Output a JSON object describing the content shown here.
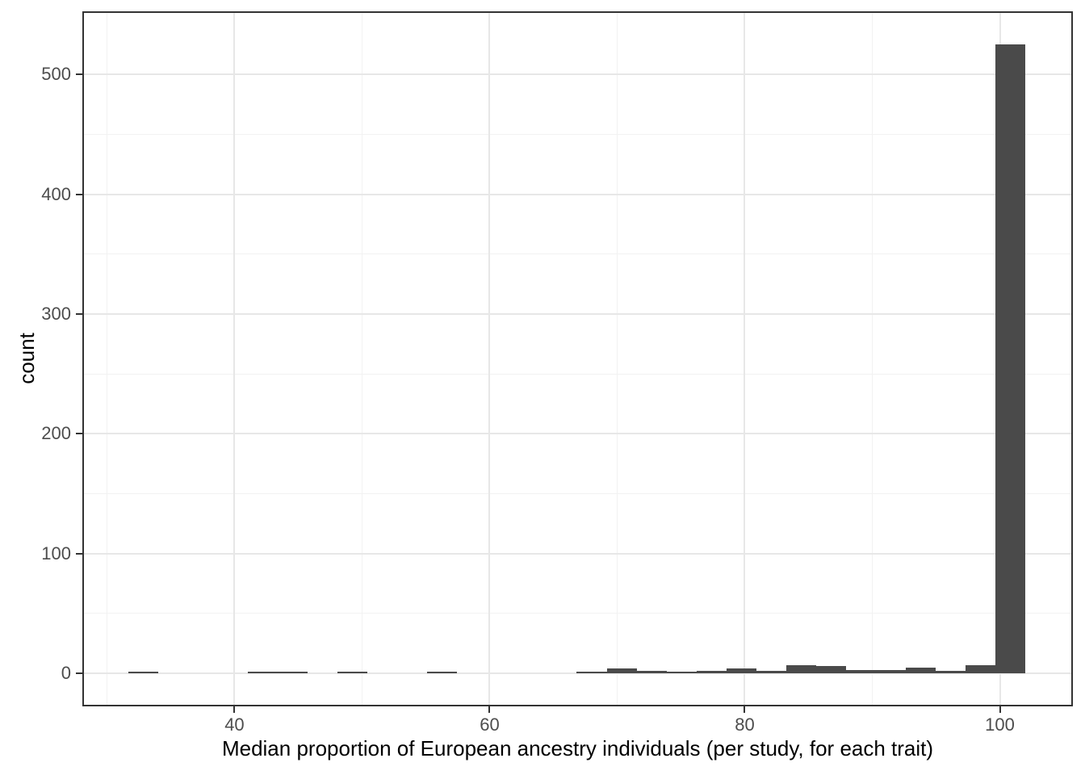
{
  "chart_data": {
    "type": "histogram",
    "title": "",
    "xlabel": "Median proportion of European ancestry individuals (per study, for each trait)",
    "ylabel": "count",
    "x_ticks": [
      40,
      60,
      80,
      100
    ],
    "y_ticks": [
      0,
      100,
      200,
      300,
      400,
      500
    ],
    "x_minor_gridlines": [
      30,
      50,
      70,
      90
    ],
    "y_minor_gridlines": [
      50,
      150,
      250,
      350,
      450
    ],
    "x_domain": [
      28.2,
      105.6
    ],
    "y_domain": [
      -26.3,
      551.5
    ],
    "bin_start": 31.66,
    "bin_width": 2.345,
    "bin_counts": [
      1,
      0,
      0,
      0,
      1,
      1,
      0,
      1,
      0,
      0,
      1,
      0,
      0,
      0,
      0,
      1,
      4,
      2,
      1,
      2,
      4,
      2,
      7,
      6,
      3,
      3,
      5,
      2,
      7,
      525
    ],
    "legend": null,
    "grid": "on",
    "colors": {
      "bar_fill": "#4a4a4a",
      "grid_major": "#e7e7e7",
      "grid_minor": "#f2f2f2",
      "panel_border": "#333333",
      "tick_mark": "#333333",
      "tick_label": "#4d4d4d",
      "axis_title": "#000000",
      "background": "#ffffff"
    }
  }
}
